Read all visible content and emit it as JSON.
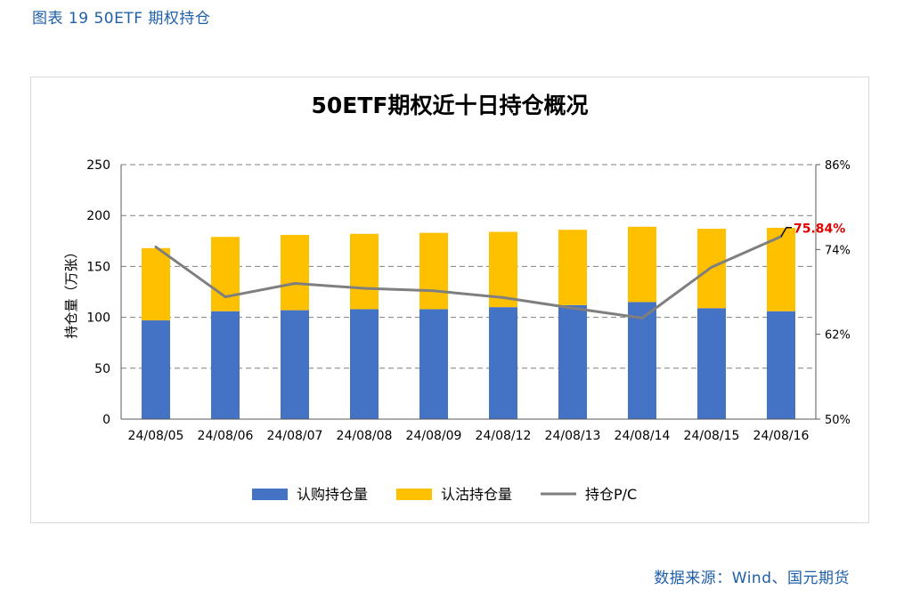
{
  "caption": "图表 19 50ETF 期权持仓",
  "source": "数据来源：Wind、国元期货",
  "chart_data": {
    "type": "bar",
    "stacked": true,
    "title": "50ETF期权近十日持仓概况",
    "ylabel": "持仓量（万张）",
    "ylim": [
      0,
      250
    ],
    "yticks": [
      "0",
      "50",
      "100",
      "150",
      "200",
      "250"
    ],
    "y2lim": [
      0.5,
      0.86
    ],
    "y2ticks": [
      "50%",
      "62%",
      "74%",
      "86%"
    ],
    "categories": [
      "24/08/05",
      "24/08/06",
      "24/08/07",
      "24/08/08",
      "24/08/09",
      "24/08/12",
      "24/08/13",
      "24/08/14",
      "24/08/15",
      "24/08/16"
    ],
    "series": [
      {
        "name": "认购持仓量",
        "kind": "bar",
        "color": "#4472c4",
        "values": [
          97,
          106,
          107,
          108,
          108,
          110,
          112,
          115,
          109,
          106
        ]
      },
      {
        "name": "认沽持仓量",
        "kind": "bar",
        "color": "#ffc000",
        "values": [
          71,
          73,
          74,
          74,
          75,
          74,
          74,
          74,
          78,
          82
        ]
      },
      {
        "name": "持仓P/C",
        "kind": "line",
        "axis": "right",
        "color": "#7f7f7f",
        "values": [
          0.7435,
          0.673,
          0.692,
          0.685,
          0.6815,
          0.672,
          0.657,
          0.643,
          0.715,
          0.7584
        ]
      }
    ],
    "annotation": {
      "text": "75.84%",
      "color": "#e00000"
    },
    "grid": "dashed-horizontal",
    "legend": "bottom"
  }
}
